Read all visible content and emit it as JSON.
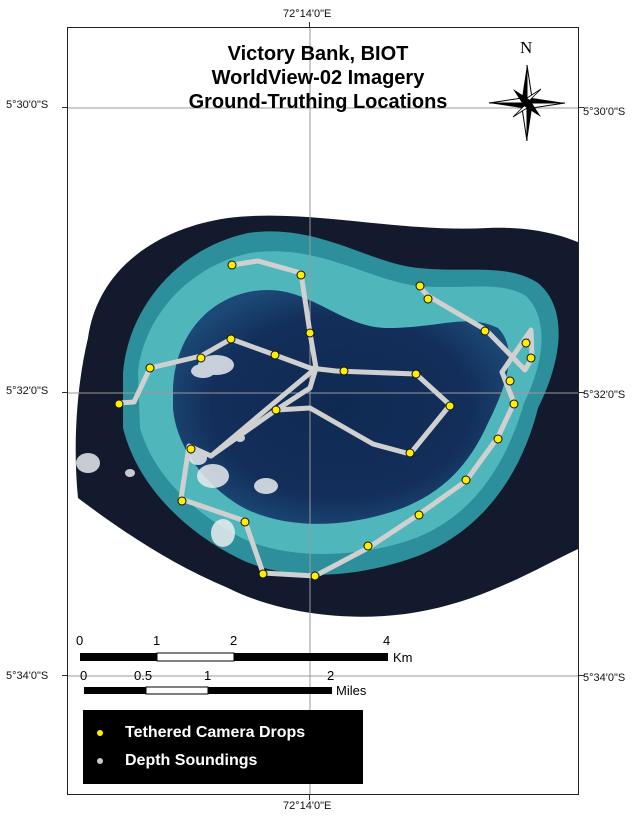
{
  "map": {
    "title_lines": [
      "Victory Bank, BIOT",
      "WorldView-02 Imagery",
      "Ground-Truthing Locations"
    ],
    "north_label": "N",
    "lon_top": "72°14'0\"E",
    "lon_bottom": "72°14'0\"E",
    "lat_labels": {
      "left_530": "5°30'0\"S",
      "right_530": "5°30'0\"S",
      "left_532": "5°32'0\"S",
      "right_532": "5°32'0\"S",
      "left_534": "5°34'0\"S",
      "right_534": "5°34'0\"S"
    }
  },
  "scalebar": {
    "km_ticks": [
      "0",
      "1",
      "2",
      "4"
    ],
    "km_unit": "Km",
    "mile_ticks": [
      "0",
      "0.5",
      "1",
      "2"
    ],
    "mile_unit": "Miles"
  },
  "legend": {
    "camera_label": "Tethered Camera Drops",
    "camera_color": "#ffee00",
    "sounding_label": "Depth Soundings",
    "sounding_color": "#c8c8c8"
  }
}
